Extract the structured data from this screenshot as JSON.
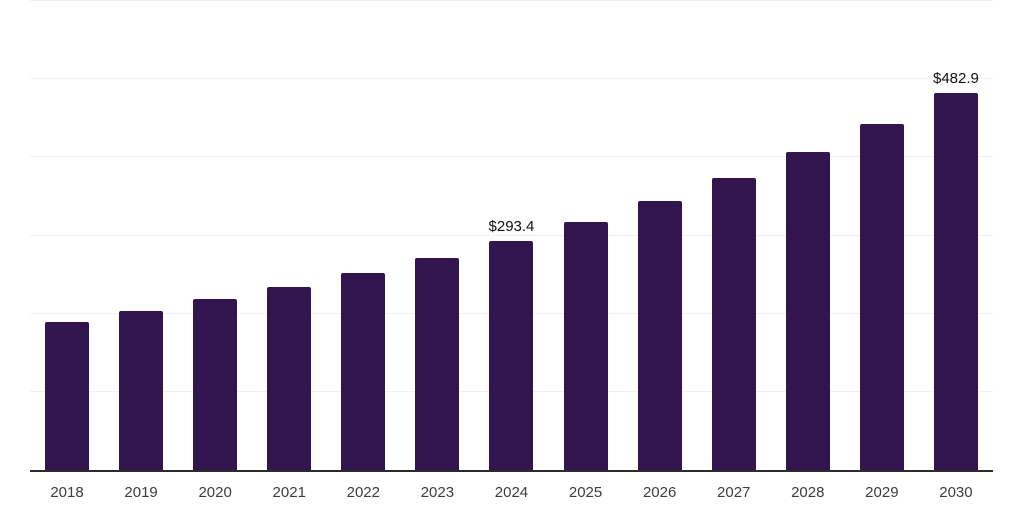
{
  "chart_data": {
    "type": "bar",
    "title": "",
    "xlabel": "",
    "ylabel": "",
    "categories": [
      "2018",
      "2019",
      "2020",
      "2021",
      "2022",
      "2023",
      "2024",
      "2025",
      "2026",
      "2027",
      "2028",
      "2029",
      "2030"
    ],
    "values": [
      189.6,
      203.3,
      218.3,
      233.6,
      251.5,
      270.7,
      293.4,
      317.5,
      344.2,
      373.0,
      407.0,
      442.4,
      482.9
    ],
    "value_labels": {
      "2024": "$293.4",
      "2030": "$482.9"
    },
    "ylim": [
      0,
      600
    ],
    "grid_interval": 100,
    "grid": "horizontal",
    "legend": "none",
    "colors": {
      "bar": "#32154e",
      "gridline": "#f1f1f1",
      "axis_line": "#2b2b2b",
      "tick_label": "#3d3d3d",
      "value_label": "#101010",
      "background": "#ffffff"
    }
  }
}
